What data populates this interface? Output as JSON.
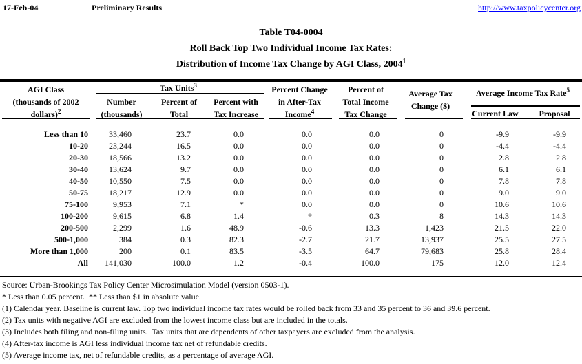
{
  "header_bar": {
    "date": "17-Feb-04",
    "status": "Preliminary Results",
    "url": "http://www.taxpolicycenter.org"
  },
  "title": {
    "line1": "Table T04-0004",
    "line2": "Roll Back Top Two Individual Income Tax Rates:",
    "line3": "Distribution of Income Tax Change by AGI Class, 2004",
    "line3_sup": "1"
  },
  "table": {
    "headers": {
      "agi_class": {
        "line1": "AGI Class",
        "line2": "(thousands of 2002",
        "line3": "dollars)",
        "sup": "2"
      },
      "tax_units": {
        "text": "Tax Units",
        "sup": "3"
      },
      "number": {
        "line1": "Number",
        "line2": "(thousands)"
      },
      "percent_of_total": {
        "line1": "Percent of",
        "line2": "Total"
      },
      "percent_with_increase": {
        "line1": "Percent with",
        "line2": "Tax Increase"
      },
      "pct_change_after_tax": {
        "line1": "Percent Change",
        "line2": "in After-Tax",
        "line3": "Income",
        "sup": "4"
      },
      "pct_total_tax_change": {
        "line1": "Percent of",
        "line2": "Total Income",
        "line3": "Tax Change"
      },
      "avg_tax_change": {
        "line1": "Average Tax",
        "line2": "Change ($)"
      },
      "avg_income_tax_rate": {
        "text": "Average Income Tax Rate",
        "sup": "5"
      },
      "current_law": "Current Law",
      "proposal": "Proposal"
    },
    "column_keys": [
      "agi",
      "number",
      "pct_total",
      "pct_increase",
      "pct_change_ati",
      "pct_total_change",
      "avg_change",
      "current_law",
      "proposal"
    ],
    "rows": [
      {
        "agi": "Less than 10",
        "number": "33,460",
        "pct_total": "23.7",
        "pct_increase": "0.0",
        "pct_change_ati": "0.0",
        "pct_total_change": "0.0",
        "avg_change": "0",
        "current_law": "-9.9",
        "proposal": "-9.9"
      },
      {
        "agi": "10-20",
        "number": "23,244",
        "pct_total": "16.5",
        "pct_increase": "0.0",
        "pct_change_ati": "0.0",
        "pct_total_change": "0.0",
        "avg_change": "0",
        "current_law": "-4.4",
        "proposal": "-4.4"
      },
      {
        "agi": "20-30",
        "number": "18,566",
        "pct_total": "13.2",
        "pct_increase": "0.0",
        "pct_change_ati": "0.0",
        "pct_total_change": "0.0",
        "avg_change": "0",
        "current_law": "2.8",
        "proposal": "2.8"
      },
      {
        "agi": "30-40",
        "number": "13,624",
        "pct_total": "9.7",
        "pct_increase": "0.0",
        "pct_change_ati": "0.0",
        "pct_total_change": "0.0",
        "avg_change": "0",
        "current_law": "6.1",
        "proposal": "6.1"
      },
      {
        "agi": "40-50",
        "number": "10,550",
        "pct_total": "7.5",
        "pct_increase": "0.0",
        "pct_change_ati": "0.0",
        "pct_total_change": "0.0",
        "avg_change": "0",
        "current_law": "7.8",
        "proposal": "7.8"
      },
      {
        "agi": "50-75",
        "number": "18,217",
        "pct_total": "12.9",
        "pct_increase": "0.0",
        "pct_change_ati": "0.0",
        "pct_total_change": "0.0",
        "avg_change": "0",
        "current_law": "9.0",
        "proposal": "9.0"
      },
      {
        "agi": "75-100",
        "number": "9,953",
        "pct_total": "7.1",
        "pct_increase": "*",
        "pct_change_ati": "0.0",
        "pct_total_change": "0.0",
        "avg_change": "0",
        "current_law": "10.6",
        "proposal": "10.6"
      },
      {
        "agi": "100-200",
        "number": "9,615",
        "pct_total": "6.8",
        "pct_increase": "1.4",
        "pct_change_ati": "*",
        "pct_total_change": "0.3",
        "avg_change": "8",
        "current_law": "14.3",
        "proposal": "14.3"
      },
      {
        "agi": "200-500",
        "number": "2,299",
        "pct_total": "1.6",
        "pct_increase": "48.9",
        "pct_change_ati": "-0.6",
        "pct_total_change": "13.3",
        "avg_change": "1,423",
        "current_law": "21.5",
        "proposal": "22.0"
      },
      {
        "agi": "500-1,000",
        "number": "384",
        "pct_total": "0.3",
        "pct_increase": "82.3",
        "pct_change_ati": "-2.7",
        "pct_total_change": "21.7",
        "avg_change": "13,937",
        "current_law": "25.5",
        "proposal": "27.5"
      },
      {
        "agi": "More than 1,000",
        "number": "200",
        "pct_total": "0.1",
        "pct_increase": "83.5",
        "pct_change_ati": "-3.5",
        "pct_total_change": "64.7",
        "avg_change": "79,683",
        "current_law": "25.8",
        "proposal": "28.4"
      },
      {
        "agi": "All",
        "number": "141,030",
        "pct_total": "100.0",
        "pct_increase": "1.2",
        "pct_change_ati": "-0.4",
        "pct_total_change": "100.0",
        "avg_change": "175",
        "current_law": "12.0",
        "proposal": "12.4"
      }
    ]
  },
  "footnotes": [
    "Source: Urban-Brookings Tax Policy Center Microsimulation Model (version 0503-1).",
    "* Less than 0.05 percent.  ** Less than $1 in absolute value.",
    "(1) Calendar year. Baseline is current law. Top two individual income tax rates would be rolled back from 33 and 35 percent to 36 and 39.6 percent.",
    "(2) Tax units with negative AGI are excluded from the lowest income class but are included in the totals.",
    "(3) Includes both filing and non-filing units.  Tax units that are dependents of other taxpayers are excluded from the analysis.",
    "(4) After-tax income is AGI less individual income tax net of refundable credits.",
    "(5) Average income tax, net of refundable credits, as a percentage of average AGI."
  ],
  "colors": {
    "link": "#0000ff",
    "text": "#000000",
    "background": "#ffffff"
  }
}
